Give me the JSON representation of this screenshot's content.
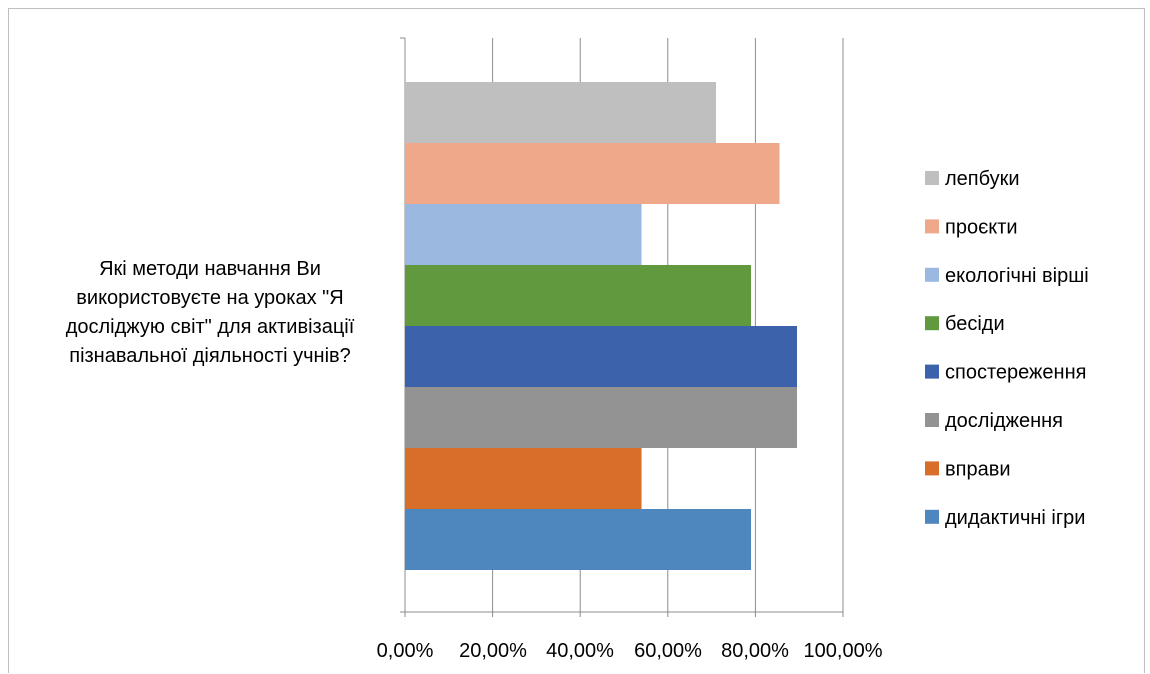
{
  "chart_data": {
    "type": "bar",
    "orientation": "horizontal",
    "categories": [
      "Які методи навчання Ви використовуєте на уроках \"Я досліджую світ\" для активізації пізнавальної діяльності учнів?"
    ],
    "series": [
      {
        "name": "дидактичні ігри",
        "values": [
          0.79
        ],
        "color": "#4e87bd"
      },
      {
        "name": "вправи",
        "values": [
          0.54
        ],
        "color": "#d76e2a"
      },
      {
        "name": "дослідження",
        "values": [
          0.895
        ],
        "color": "#939393"
      },
      {
        "name": "спостереження",
        "values": [
          0.895
        ],
        "color": "#3c62ab"
      },
      {
        "name": "бесіди",
        "values": [
          0.79
        ],
        "color": "#619a3e"
      },
      {
        "name": "екологічні вірші",
        "values": [
          0.54
        ],
        "color": "#9bb9e0"
      },
      {
        "name": "проєкти",
        "values": [
          0.855
        ],
        "color": "#f0a88a"
      },
      {
        "name": "лепбуки",
        "values": [
          0.71
        ],
        "color": "#bfbfbf"
      }
    ],
    "xlim": [
      0,
      1
    ],
    "x_ticks": [
      "0,00%",
      "20,00%",
      "40,00%",
      "60,00%",
      "80,00%",
      "100,00%"
    ],
    "legend_order": [
      "лепбуки",
      "проєкти",
      "екологічні вірші",
      "бесіди",
      "спостереження",
      "дослідження",
      "вправи",
      "дидактичні ігри"
    ],
    "legend_position": "right",
    "grid": true,
    "title": "",
    "xlabel": "",
    "ylabel": ""
  }
}
